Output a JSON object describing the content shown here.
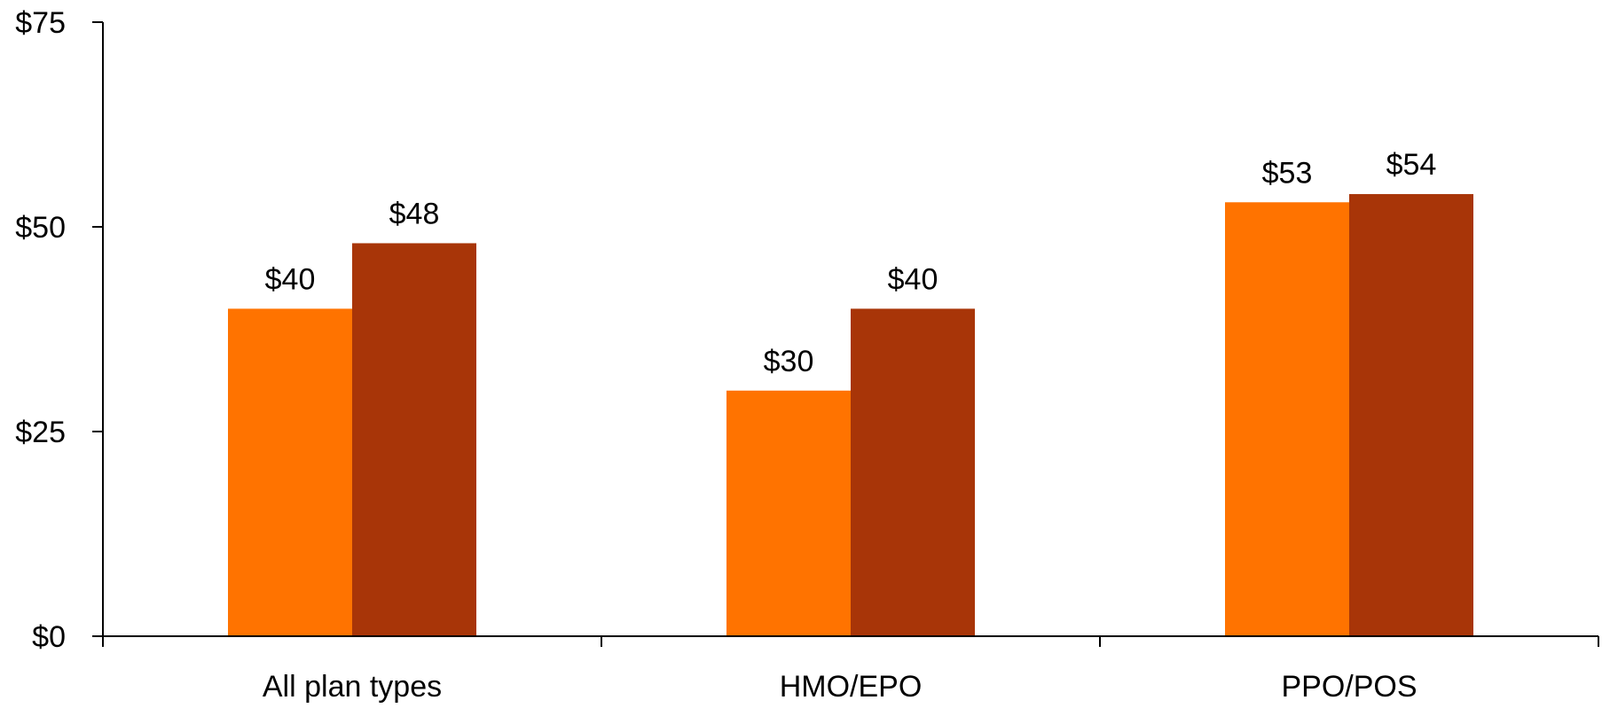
{
  "chart_data": {
    "type": "bar",
    "categories": [
      "All plan types",
      "HMO/EPO",
      "PPO/POS"
    ],
    "series": [
      {
        "values": [
          40,
          30,
          53
        ],
        "color": "#FF7300",
        "labels": [
          "$40",
          "$30",
          "$53"
        ]
      },
      {
        "values": [
          48,
          40,
          54
        ],
        "color": "#A83508",
        "labels": [
          "$48",
          "$40",
          "$54"
        ]
      }
    ],
    "ylim": [
      0,
      75
    ],
    "y_ticks": [
      0,
      25,
      50,
      75
    ],
    "y_tick_labels": [
      "$0",
      "$25",
      "$50",
      "$75"
    ],
    "title": "",
    "xlabel": "",
    "ylabel": "",
    "grid": false,
    "legend": "none"
  }
}
